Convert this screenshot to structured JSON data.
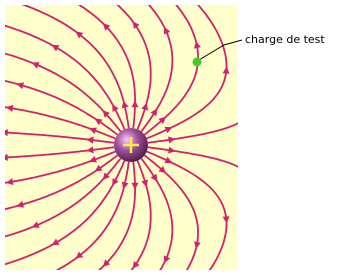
{
  "label": "charge de test"
}
